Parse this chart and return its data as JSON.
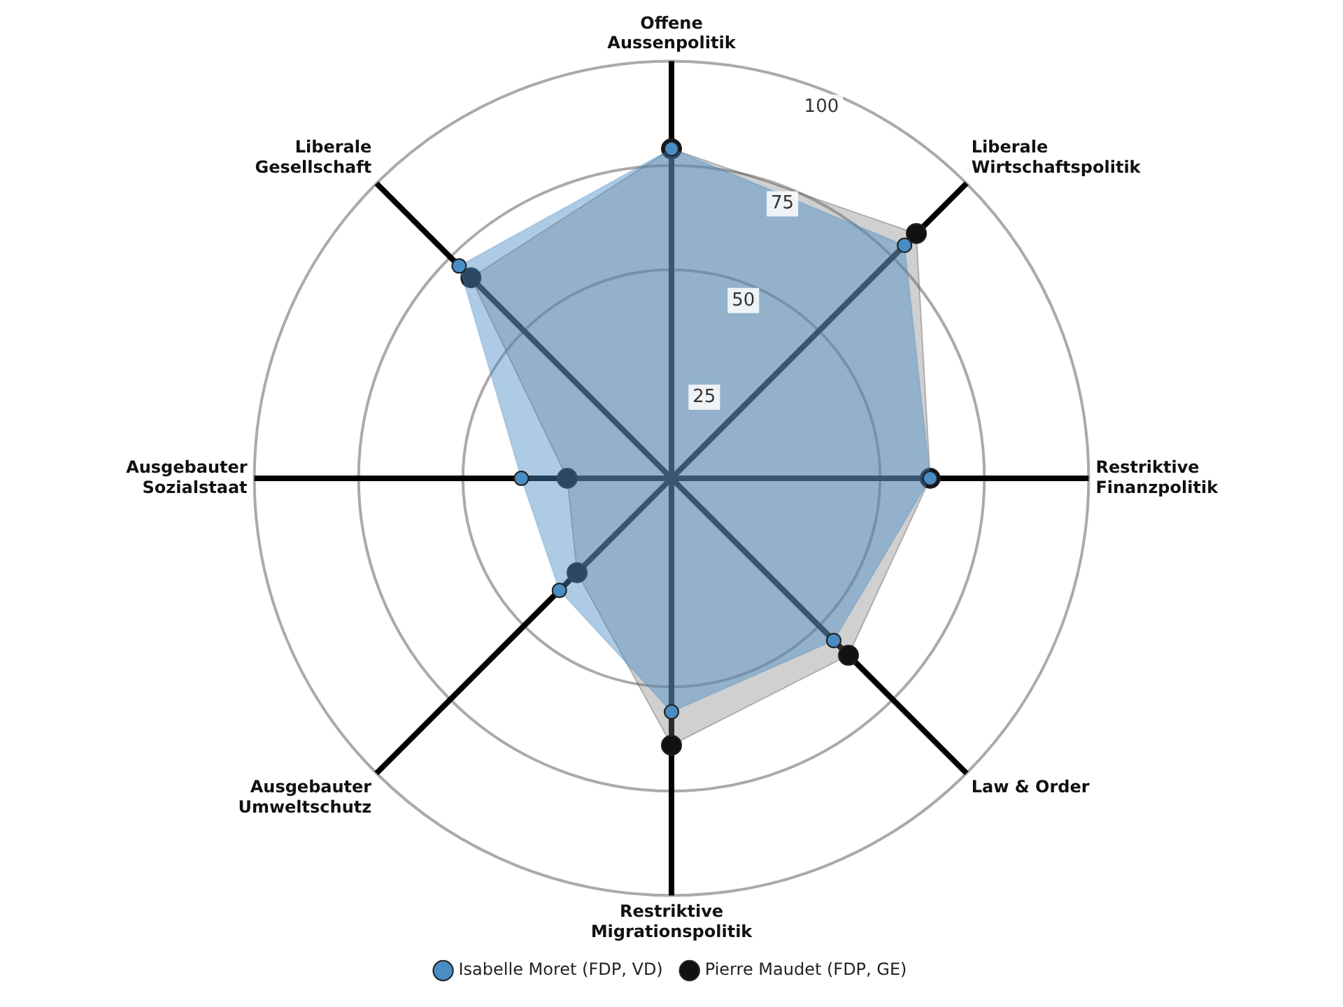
{
  "chart_data": {
    "type": "radar",
    "categories": [
      "Offene Aussenpolitik",
      "Liberale Wirtschaftspolitik",
      "Restriktive Finanzpolitik",
      "Law & Order",
      "Restriktive Migrationspolitik",
      "Ausgebauter Umweltschutz",
      "Ausgebauter Sozialstaat",
      "Liberale Gesellschaft"
    ],
    "series": [
      {
        "name": "Isabelle Moret (FDP, VD)",
        "color": "#4a8cc4",
        "values": [
          79,
          79,
          62,
          55,
          56,
          38,
          36,
          72
        ]
      },
      {
        "name": "Pierre Maudet (FDP, GE)",
        "color": "#111111",
        "values": [
          79,
          83,
          62,
          60,
          64,
          32,
          25,
          68
        ]
      }
    ],
    "ylim": [
      0,
      100
    ],
    "yticks": [
      25,
      50,
      75,
      100
    ],
    "grid": true,
    "legend": "bottom",
    "marker": "circle"
  }
}
